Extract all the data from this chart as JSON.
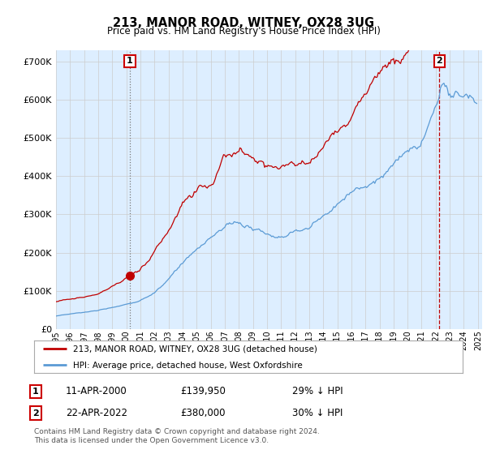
{
  "title": "213, MANOR ROAD, WITNEY, OX28 3UG",
  "subtitle": "Price paid vs. HM Land Registry's House Price Index (HPI)",
  "hpi_color": "#5b9bd5",
  "price_color": "#c00000",
  "marker1_vline_color": "#888888",
  "marker2_vline_color": "#c00000",
  "chart_bg_color": "#ddeeff",
  "marker1_value": 139950,
  "marker2_value": 380000,
  "marker1_date": "11-APR-2000",
  "marker2_date": "22-APR-2022",
  "marker1_hpi_pct": "29% ↓ HPI",
  "marker2_hpi_pct": "30% ↓ HPI",
  "legend_label1": "213, MANOR ROAD, WITNEY, OX28 3UG (detached house)",
  "legend_label2": "HPI: Average price, detached house, West Oxfordshire",
  "footer": "Contains HM Land Registry data © Crown copyright and database right 2024.\nThis data is licensed under the Open Government Licence v3.0.",
  "ylim": [
    0,
    730000
  ],
  "background_color": "#ffffff",
  "grid_color": "#cccccc"
}
